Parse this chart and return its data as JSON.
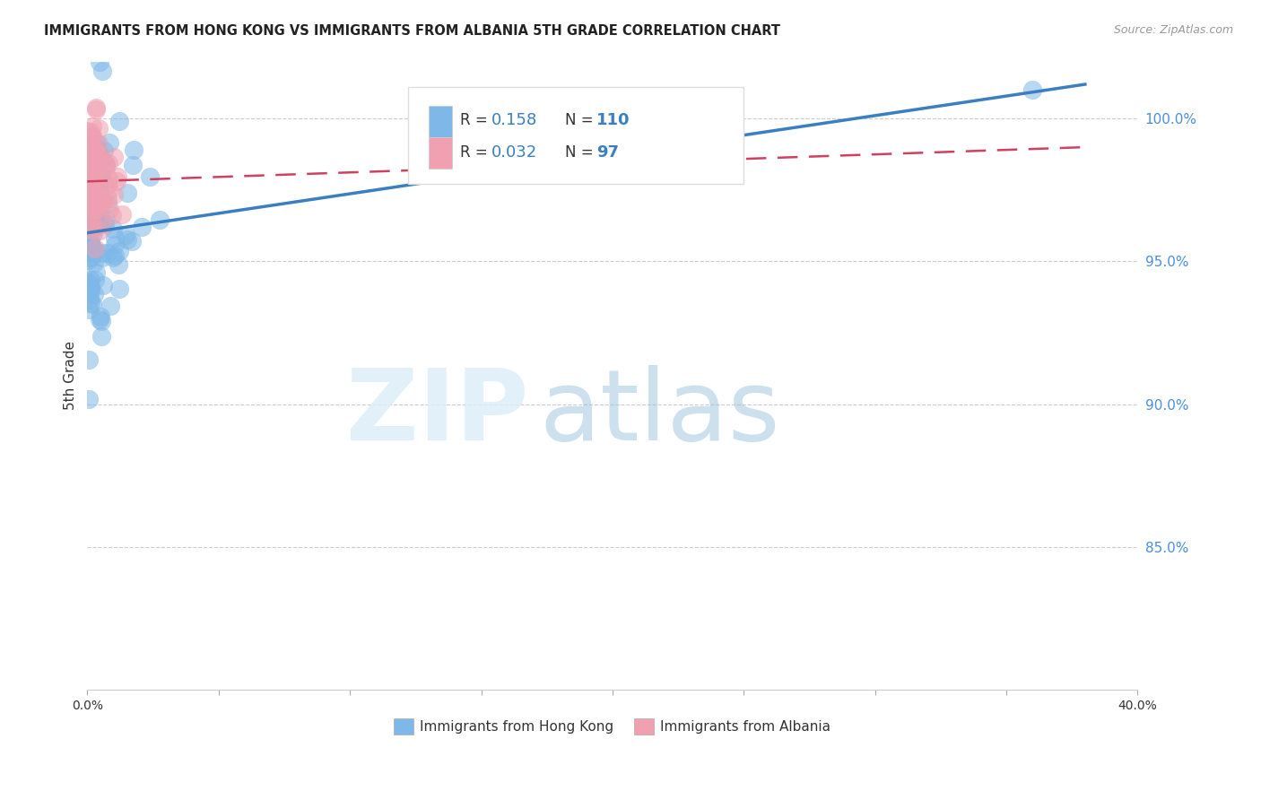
{
  "title": "IMMIGRANTS FROM HONG KONG VS IMMIGRANTS FROM ALBANIA 5TH GRADE CORRELATION CHART",
  "source": "Source: ZipAtlas.com",
  "ylabel": "5th Grade",
  "xlim": [
    0.0,
    40.0
  ],
  "ylim": [
    80.0,
    102.0
  ],
  "yticks": [
    85.0,
    90.0,
    95.0,
    100.0
  ],
  "legend1_label": "Immigrants from Hong Kong",
  "legend2_label": "Immigrants from Albania",
  "hk_color": "#7eb8e8",
  "alb_color": "#f0a0b0",
  "hk_R": 0.158,
  "hk_N": 110,
  "alb_R": 0.032,
  "alb_N": 97,
  "hk_line_x0": 0.0,
  "hk_line_y0": 96.0,
  "hk_line_x1": 38.0,
  "hk_line_y1": 101.2,
  "alb_line_x0": 0.0,
  "alb_line_y0": 97.8,
  "alb_line_x1": 38.0,
  "alb_line_y1": 99.0,
  "watermark_zip": "ZIP",
  "watermark_atlas": "atlas",
  "title_fontsize": 10.5,
  "source_fontsize": 9,
  "axis_label_color": "#4a90d9",
  "tick_label_color": "#333333"
}
